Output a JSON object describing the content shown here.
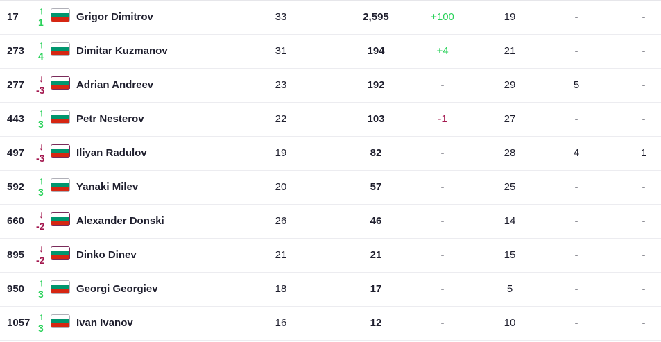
{
  "colors": {
    "up": "#2bd25b",
    "down": "#a3184f",
    "text": "#1f1f2e",
    "divider": "#ececf0"
  },
  "rows": [
    {
      "rank": "17",
      "dir": "up",
      "move": "1",
      "flag_icon": "bulgaria-flag-icon",
      "name": "Grigor Dimitrov",
      "age": "33",
      "points": "2,595",
      "change": "+100",
      "change_type": "pos",
      "played": "19",
      "col_a": "-",
      "col_b": "-"
    },
    {
      "rank": "273",
      "dir": "up",
      "move": "4",
      "flag_icon": "bulgaria-flag-icon",
      "name": "Dimitar Kuzmanov",
      "age": "31",
      "points": "194",
      "change": "+4",
      "change_type": "pos",
      "played": "21",
      "col_a": "-",
      "col_b": "-"
    },
    {
      "rank": "277",
      "dir": "down",
      "move": "-3",
      "flag_icon": "bulgaria-flag-icon",
      "name": "Adrian Andreev",
      "age": "23",
      "points": "192",
      "change": "-",
      "change_type": "none",
      "played": "29",
      "col_a": "5",
      "col_b": "-"
    },
    {
      "rank": "443",
      "dir": "up",
      "move": "3",
      "flag_icon": "bulgaria-flag-icon",
      "name": "Petr Nesterov",
      "age": "22",
      "points": "103",
      "change": "-1",
      "change_type": "neg",
      "played": "27",
      "col_a": "-",
      "col_b": "-"
    },
    {
      "rank": "497",
      "dir": "down",
      "move": "-3",
      "flag_icon": "bulgaria-flag-icon",
      "name": "Iliyan Radulov",
      "age": "19",
      "points": "82",
      "change": "-",
      "change_type": "none",
      "played": "28",
      "col_a": "4",
      "col_b": "1"
    },
    {
      "rank": "592",
      "dir": "up",
      "move": "3",
      "flag_icon": "bulgaria-flag-icon",
      "name": "Yanaki Milev",
      "age": "20",
      "points": "57",
      "change": "-",
      "change_type": "none",
      "played": "25",
      "col_a": "-",
      "col_b": "-"
    },
    {
      "rank": "660",
      "dir": "down",
      "move": "-2",
      "flag_icon": "bulgaria-flag-icon",
      "name": "Alexander Donski",
      "age": "26",
      "points": "46",
      "change": "-",
      "change_type": "none",
      "played": "14",
      "col_a": "-",
      "col_b": "-"
    },
    {
      "rank": "895",
      "dir": "down",
      "move": "-2",
      "flag_icon": "bulgaria-flag-icon",
      "name": "Dinko Dinev",
      "age": "21",
      "points": "21",
      "change": "-",
      "change_type": "none",
      "played": "15",
      "col_a": "-",
      "col_b": "-"
    },
    {
      "rank": "950",
      "dir": "up",
      "move": "3",
      "flag_icon": "bulgaria-flag-icon",
      "name": "Georgi Georgiev",
      "age": "18",
      "points": "17",
      "change": "-",
      "change_type": "none",
      "played": "5",
      "col_a": "-",
      "col_b": "-"
    },
    {
      "rank": "1057",
      "dir": "up",
      "move": "3",
      "flag_icon": "bulgaria-flag-icon",
      "name": "Ivan Ivanov",
      "age": "16",
      "points": "12",
      "change": "-",
      "change_type": "none",
      "played": "10",
      "col_a": "-",
      "col_b": "-"
    }
  ]
}
